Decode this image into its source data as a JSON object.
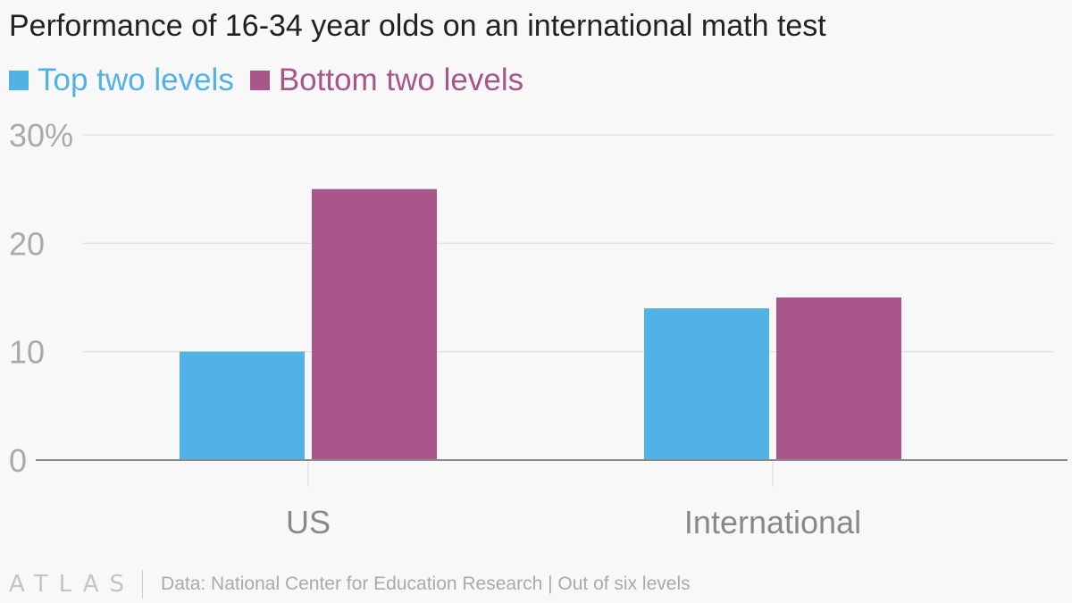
{
  "chart_data": {
    "type": "bar",
    "title": "Performance of 16-34 year olds on an international math test",
    "categories": [
      "US",
      "International"
    ],
    "series": [
      {
        "name": "Top two levels",
        "values": [
          10,
          14
        ],
        "color": "#51b2e5"
      },
      {
        "name": "Bottom two levels",
        "values": [
          25,
          15
        ],
        "color": "#a8568a"
      }
    ],
    "ylim": [
      0,
      30
    ],
    "yticks": [
      0,
      10,
      20,
      30
    ],
    "ytick_labels": [
      "0",
      "10",
      "20",
      "30%"
    ],
    "xlabel": "",
    "ylabel": "",
    "grid": true,
    "legend": "top-left"
  },
  "footer": {
    "logo": "ATLAS",
    "source": "Data: National Center for Education Research | Out of six levels"
  },
  "colors": {
    "background": "#f8f8f8",
    "grid": "#e3e3e3",
    "axis": "#8a8a8a",
    "tick_text": "#aaaaaa",
    "title_text": "#222222"
  }
}
